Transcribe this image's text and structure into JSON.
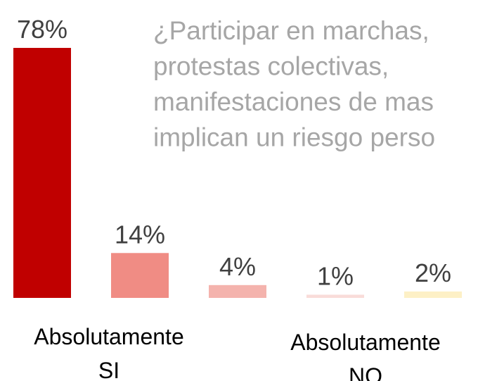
{
  "chart_data": {
    "type": "bar",
    "title": [
      "¿Participar en marchas,",
      "protestas colectivas,",
      "manifestaciones de mas",
      "implican un riesgo perso"
    ],
    "values": [
      78,
      14,
      4,
      1,
      2
    ],
    "value_labels": [
      "78%",
      "14%",
      "4%",
      "1%",
      "2%"
    ],
    "colors": [
      "#c00000",
      "#f08c84",
      "#f4b3ad",
      "#f9dcd9",
      "#fdf0c6"
    ],
    "annotations": [
      [
        "Absolutamente",
        "SI"
      ],
      [
        "Absolutamente",
        "NO"
      ]
    ]
  }
}
